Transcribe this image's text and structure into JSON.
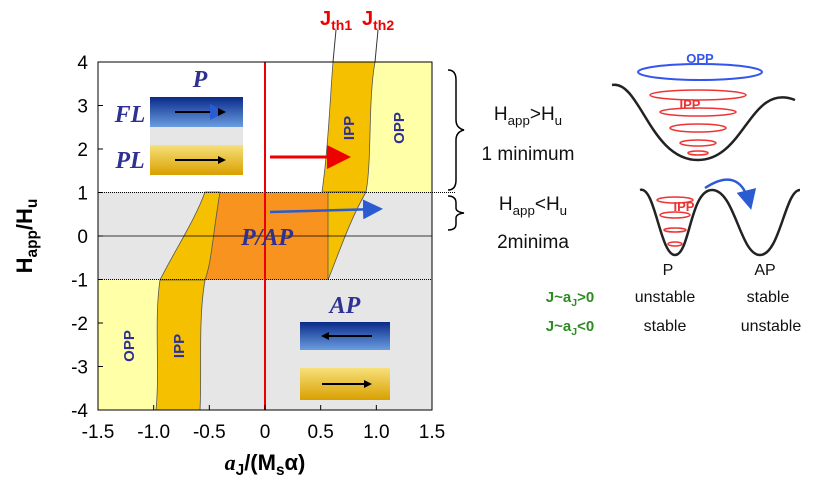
{
  "axes": {
    "xticks": [
      {
        "value": -1.5,
        "label": "-1.5"
      },
      {
        "value": -1,
        "label": "-1.0"
      },
      {
        "value": -0.5,
        "label": "-0.5"
      },
      0,
      0.5,
      {
        "value": 1,
        "label": "1.0"
      },
      1.5
    ],
    "xlim": [
      -1.5,
      1.5
    ],
    "yticks": [
      4,
      3,
      2,
      1,
      0,
      -1,
      -2,
      -3,
      -4
    ],
    "ylim": [
      -4,
      4
    ],
    "x_label": [
      "a",
      "J",
      "/(M",
      "s",
      "α)"
    ],
    "y_label": [
      "H",
      "app",
      "/H",
      "u"
    ]
  },
  "thresholds": [
    [
      "J",
      "th1"
    ],
    [
      "J",
      "th2"
    ]
  ],
  "regions": {
    "ipp_top": "IPP",
    "opp_top": "OPP",
    "pap": "P/AP",
    "ipp_bottom": "IPP",
    "opp_bottom": "OPP"
  },
  "insets": {
    "p": {
      "title": "P",
      "fl": "FL",
      "pl": "PL"
    },
    "ap": {
      "title": "AP"
    }
  },
  "annotations": {
    "high": [
      "H",
      "app",
      ">H",
      "u"
    ],
    "high_note": "1 minimum",
    "low": [
      "H",
      "app",
      "<H",
      "u"
    ],
    "low_note": "2minima",
    "well_opp": "OPP",
    "well_ipp_top": "IPP",
    "well_ipp_bottom": "IPP"
  },
  "stability": {
    "columns": [
      "P",
      "AP"
    ],
    "rows": [
      {
        "label": [
          "J~a",
          "J",
          ">0"
        ],
        "cells": [
          "unstable",
          "stable"
        ]
      },
      {
        "label": [
          "J~a",
          "J",
          "<0"
        ],
        "cells": [
          "stable",
          "unstable"
        ]
      }
    ]
  }
}
